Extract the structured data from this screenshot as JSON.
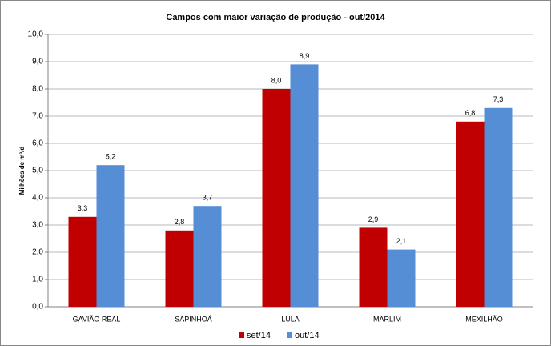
{
  "chart_data": {
    "type": "bar",
    "title": "Campos com maior variação de produção - out/2014",
    "y_label": "Milhões de m³/d",
    "categories": [
      "GAVIÃO REAL",
      "SAPINHOÁ",
      "LULA",
      "MARLIM",
      "MEXILHÃO"
    ],
    "series": [
      {
        "name": "set/14",
        "color": "#c00000",
        "values": [
          3.3,
          2.8,
          8.0,
          2.9,
          6.8
        ],
        "value_labels": [
          "3,3",
          "2,8",
          "8,0",
          "2,9",
          "6,8"
        ]
      },
      {
        "name": "out/14",
        "color": "#558ed5",
        "values": [
          5.2,
          3.7,
          8.9,
          2.1,
          7.3
        ],
        "value_labels": [
          "5,2",
          "3,7",
          "8,9",
          "2,1",
          "7,3"
        ]
      }
    ],
    "ylim": [
      0,
      10
    ],
    "yticks": [
      {
        "value": 0,
        "label": "0,0"
      },
      {
        "value": 1,
        "label": "1,0"
      },
      {
        "value": 2,
        "label": "2,0"
      },
      {
        "value": 3,
        "label": "3,0"
      },
      {
        "value": 4,
        "label": "4,0"
      },
      {
        "value": 5,
        "label": "5,0"
      },
      {
        "value": 6,
        "label": "6,0"
      },
      {
        "value": 7,
        "label": "7,0"
      },
      {
        "value": 8,
        "label": "8,0"
      },
      {
        "value": 9,
        "label": "9,0"
      },
      {
        "value": 10,
        "label": "10,0"
      }
    ],
    "grid": true,
    "legend": "bottom"
  }
}
